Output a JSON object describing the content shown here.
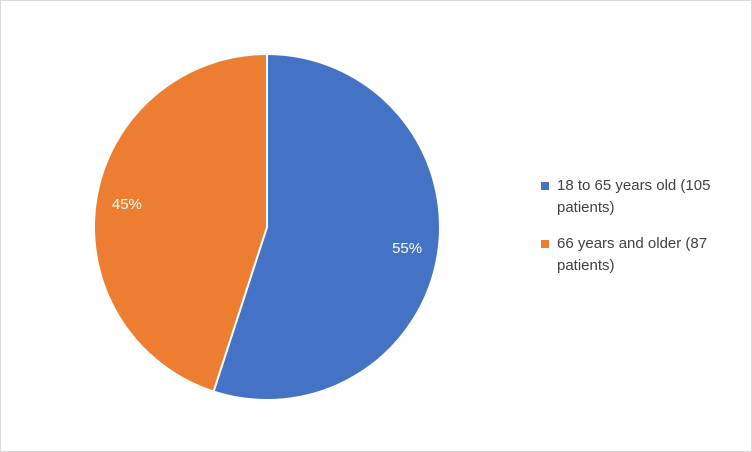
{
  "chart_data": {
    "type": "pie",
    "categories": [
      "18 to 65 years old (105 patients)",
      "66 years and older (87 patients)"
    ],
    "values": [
      55,
      45
    ],
    "value_labels": [
      "55%",
      "45%"
    ],
    "colors": [
      "#4472c4",
      "#ed7d31"
    ],
    "legend": "right"
  }
}
